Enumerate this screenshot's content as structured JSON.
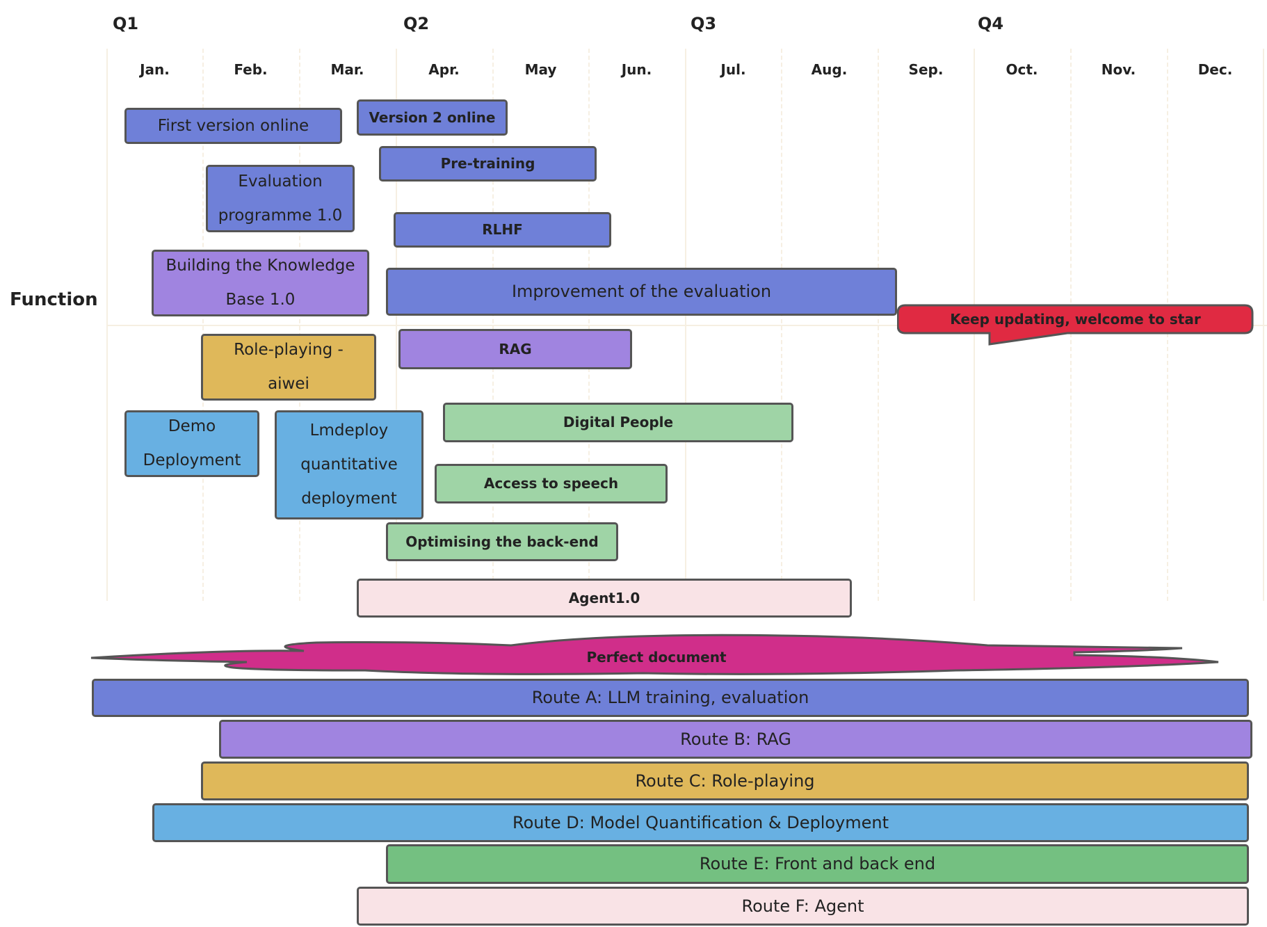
{
  "quarters": [
    "Q1",
    "Q2",
    "Q3",
    "Q4"
  ],
  "months": [
    "Jan.",
    "Feb.",
    "Mar.",
    "Apr.",
    "May",
    "Jun.",
    "Jul.",
    "Aug.",
    "Sep.",
    "Oct.",
    "Nov.",
    "Dec."
  ],
  "row_label": "Function",
  "tasks": {
    "first_version": "First version online",
    "version2": "Version 2 online",
    "pretraining": "Pre-training",
    "evaluation_l1": "Evaluation",
    "evaluation_l2": "programme 1.0",
    "rlhf": "RLHF",
    "kb_l1": "Building the Knowledge",
    "kb_l2": "Base 1.0",
    "improvement": "Improvement of the evaluation",
    "keep_updating": "Keep updating, welcome to star",
    "rag": "RAG",
    "roleplay_l1": "Role-playing -",
    "roleplay_l2": "aiwei",
    "digital_people": "Digital People",
    "demo_l1": "Demo",
    "demo_l2": "Deployment",
    "lmdeploy_l1": "Lmdeploy",
    "lmdeploy_l2": "quantitative",
    "lmdeploy_l3": "deployment",
    "speech": "Access to speech",
    "backend": "Optimising the back-end",
    "agent": "Agent1.0",
    "perfect_document": "Perfect document"
  },
  "routes": [
    "Route A: LLM training, evaluation",
    "Route B: RAG",
    "Route C: Role-playing",
    "Route D: Model Quantification & Deployment",
    "Route E: Front and back end",
    "Route F: Agent"
  ],
  "colors": {
    "route_a": "#6f80d8",
    "route_b": "#a084e0",
    "route_c": "#dfb85a",
    "route_d": "#68b0e2",
    "route_e": "#74c081",
    "route_e_tasks": "#9fd4a6",
    "route_f": "#f9e3e6",
    "callout": "#e02a42",
    "cloud": "#d02e8a"
  }
}
